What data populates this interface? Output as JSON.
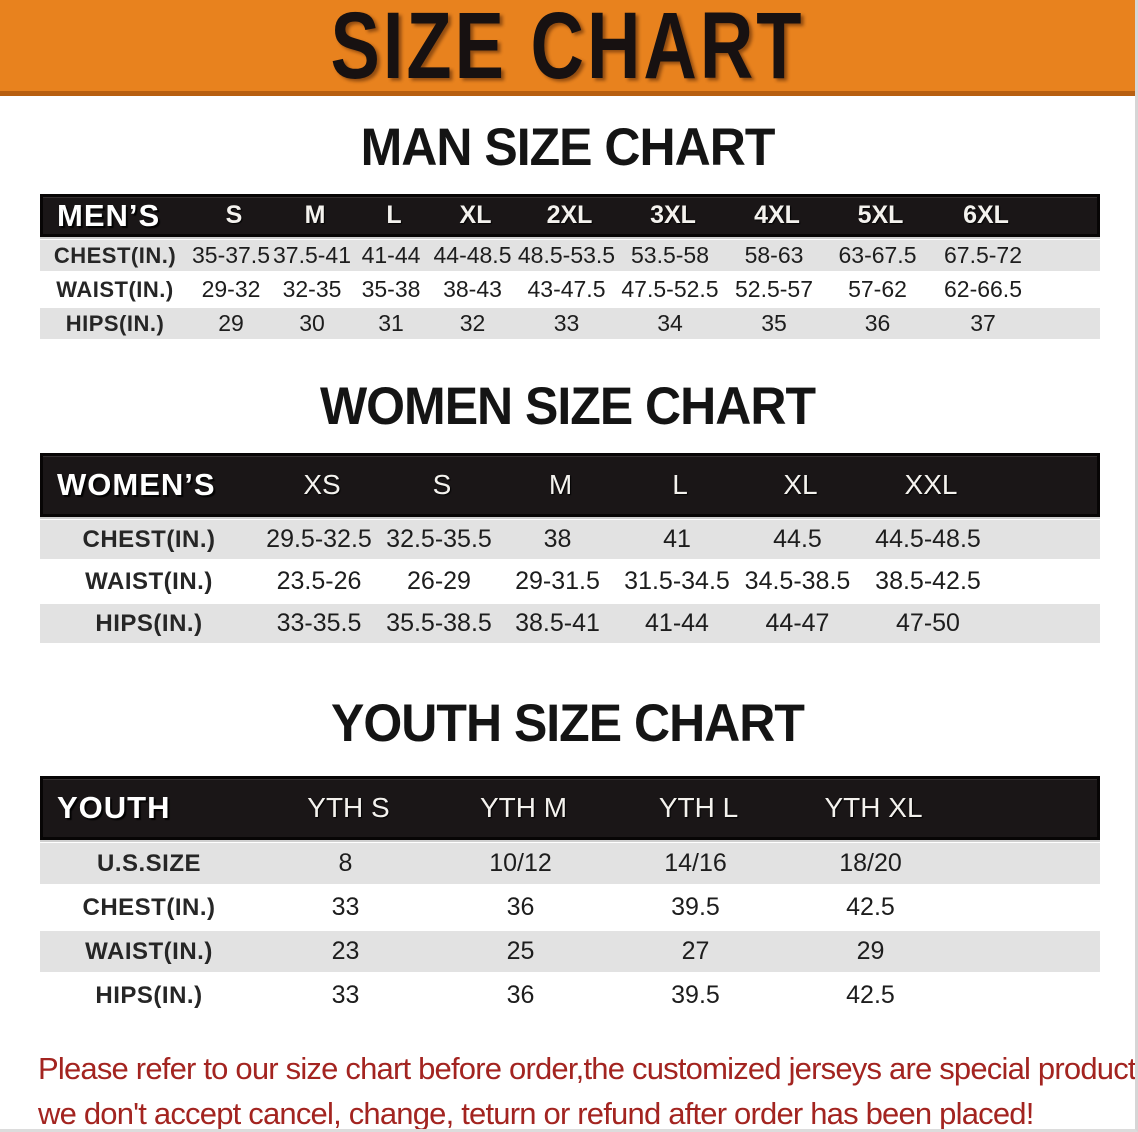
{
  "banner": {
    "title": "SIZE CHART",
    "bg_color": "#e8821e",
    "text_color": "#171111"
  },
  "sections": [
    {
      "id": "men",
      "heading": "MAN SIZE CHART",
      "table": {
        "corner_label": "MEN’S",
        "columns": [
          "S",
          "M",
          "L",
          "XL",
          "2XL",
          "3XL",
          "4XL",
          "5XL",
          "6XL"
        ],
        "rows": [
          {
            "label": "CHEST(IN.)",
            "values": [
              "35-37.5",
              "37.5-41",
              "41-44",
              "44-48.5",
              "48.5-53.5",
              "53.5-58",
              "58-63",
              "63-67.5",
              "67.5-72"
            ]
          },
          {
            "label": "WAIST(IN.)",
            "values": [
              "29-32",
              "32-35",
              "35-38",
              "38-43",
              "43-47.5",
              "47.5-52.5",
              "52.5-57",
              "57-62",
              "62-66.5"
            ]
          },
          {
            "label": "HIPS(IN.)",
            "values": [
              "29",
              "30",
              "31",
              "32",
              "33",
              "34",
              "35",
              "36",
              "37"
            ]
          }
        ]
      }
    },
    {
      "id": "women",
      "heading": "WOMEN SIZE CHART",
      "table": {
        "corner_label": "WOMEN’S",
        "columns": [
          "XS",
          "S",
          "M",
          "L",
          "XL",
          "XXL"
        ],
        "rows": [
          {
            "label": "CHEST(IN.)",
            "values": [
              "29.5-32.5",
              "32.5-35.5",
              "38",
              "41",
              "44.5",
              "44.5-48.5"
            ]
          },
          {
            "label": "WAIST(IN.)",
            "values": [
              "23.5-26",
              "26-29",
              "29-31.5",
              "31.5-34.5",
              "34.5-38.5",
              "38.5-42.5"
            ]
          },
          {
            "label": "HIPS(IN.)",
            "values": [
              "33-35.5",
              "35.5-38.5",
              "38.5-41",
              "41-44",
              "44-47",
              "47-50"
            ]
          }
        ]
      }
    },
    {
      "id": "youth",
      "heading": "YOUTH SIZE CHART",
      "table": {
        "corner_label": "YOUTH",
        "columns": [
          "YTH S",
          "YTH M",
          "YTH L",
          "YTH XL"
        ],
        "rows": [
          {
            "label": "U.S.SIZE",
            "values": [
              "8",
              "10/12",
              "14/16",
              "18/20"
            ]
          },
          {
            "label": "CHEST(IN.)",
            "values": [
              "33",
              "36",
              "39.5",
              "42.5"
            ]
          },
          {
            "label": "WAIST(IN.)",
            "values": [
              "23",
              "25",
              "27",
              "29"
            ]
          },
          {
            "label": "HIPS(IN.)",
            "values": [
              "33",
              "36",
              "39.5",
              "42.5"
            ]
          }
        ]
      }
    }
  ],
  "disclaimer": {
    "line1": "Please refer to our size chart before order,the customized jerseys are special products,",
    "line2": "we don't accept cancel, change, teturn or refund after order has been placed!"
  },
  "colors": {
    "banner_bg": "#e8821e",
    "header_bar_bg": "#1a1617",
    "stripe": "#e2e2e2",
    "disclaimer_text": "#a32420"
  }
}
